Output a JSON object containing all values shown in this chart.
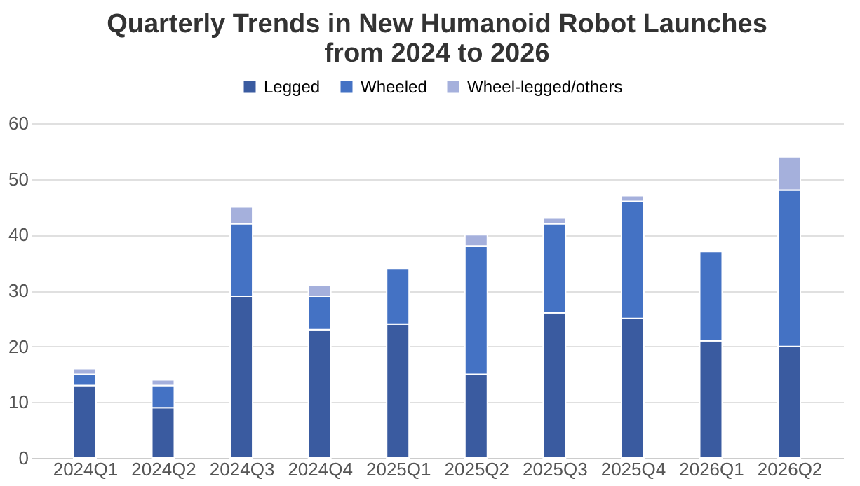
{
  "chart_data": {
    "type": "bar",
    "title": "Quarterly Trends in New Humanoid Robot Launches\nfrom 2024 to 2026",
    "stacked": true,
    "categories": [
      "2024Q1",
      "2024Q2",
      "2024Q3",
      "2024Q4",
      "2025Q1",
      "2025Q2",
      "2025Q3",
      "2025Q4",
      "2026Q1",
      "2026Q2"
    ],
    "series": [
      {
        "name": "Legged",
        "color": "#3a5ba0",
        "values": [
          13,
          9,
          29,
          23,
          24,
          15,
          26,
          25,
          21,
          20
        ]
      },
      {
        "name": "Wheeled",
        "color": "#4472c4",
        "values": [
          2,
          4,
          13,
          6,
          10,
          23,
          16,
          21,
          16,
          28
        ]
      },
      {
        "name": "Wheel-legged/others",
        "color": "#a5b0dc",
        "values": [
          1,
          1,
          3,
          2,
          0,
          2,
          1,
          1,
          0,
          6
        ]
      }
    ],
    "ylim": [
      0,
      60
    ],
    "yticks": [
      0,
      10,
      20,
      30,
      40,
      50,
      60
    ],
    "grid": "y",
    "legend": "top"
  }
}
